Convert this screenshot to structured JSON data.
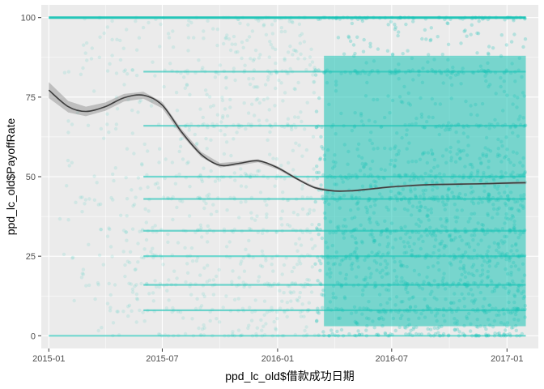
{
  "chart_data": {
    "type": "scatter",
    "title": "",
    "xlabel": "ppd_lc_old$借款成功日期",
    "ylabel": "ppd_lc_old$PayoffRate",
    "x_type": "date",
    "xlim": [
      "2014-12-20",
      "2017-02-20"
    ],
    "ylim": [
      -4,
      104
    ],
    "x_ticks": [
      {
        "value": "2015-01-01",
        "label": "2015-01"
      },
      {
        "value": "2015-07-01",
        "label": "2015-07"
      },
      {
        "value": "2016-01-01",
        "label": "2016-01"
      },
      {
        "value": "2016-07-01",
        "label": "2016-07"
      },
      {
        "value": "2017-01-01",
        "label": "2017-01"
      }
    ],
    "y_ticks": [
      0,
      25,
      50,
      75,
      100
    ],
    "grid": true,
    "legend": "none",
    "background_color": "#ebebeb",
    "point_color": "#18c3b5",
    "point_alpha": 0.12,
    "smooth_line_color": "#3d3d3d",
    "smooth_band_color": "#999999",
    "points": {
      "date_range": [
        "2015-01-01",
        "2017-01-31"
      ],
      "y_range": [
        0,
        100
      ],
      "density": "sparse before 2015-09, very dense after 2016-03",
      "horizontal_bands": [
        100,
        83,
        66,
        50,
        43,
        33,
        25,
        16,
        8,
        0
      ]
    },
    "smooth_line": {
      "x": [
        "2015-01-01",
        "2015-02-01",
        "2015-03-01",
        "2015-04-01",
        "2015-05-01",
        "2015-06-01",
        "2015-07-01",
        "2015-08-01",
        "2015-09-01",
        "2015-10-01",
        "2015-11-01",
        "2015-12-01",
        "2016-01-01",
        "2016-02-01",
        "2016-03-01",
        "2016-04-01",
        "2016-05-01",
        "2016-06-01",
        "2016-07-01",
        "2016-08-01",
        "2016-09-01",
        "2016-10-01",
        "2016-11-01",
        "2016-12-01",
        "2017-01-01",
        "2017-01-31"
      ],
      "y": [
        77.2,
        72.0,
        70.5,
        72.0,
        74.8,
        75.6,
        72.5,
        64.0,
        57.0,
        53.6,
        54.2,
        55.0,
        52.8,
        49.3,
        46.5,
        45.5,
        45.6,
        46.2,
        46.8,
        47.2,
        47.5,
        47.6,
        47.7,
        47.8,
        48.0,
        48.1
      ],
      "band": [
        2.5,
        1.8,
        1.5,
        1.3,
        1.2,
        1.1,
        1.0,
        0.9,
        0.8,
        0.7,
        0.6,
        0.5,
        0.5,
        0.4,
        0.4,
        0.3,
        0.3,
        0.3,
        0.3,
        0.3,
        0.3,
        0.3,
        0.3,
        0.3,
        0.4,
        0.5
      ]
    }
  }
}
